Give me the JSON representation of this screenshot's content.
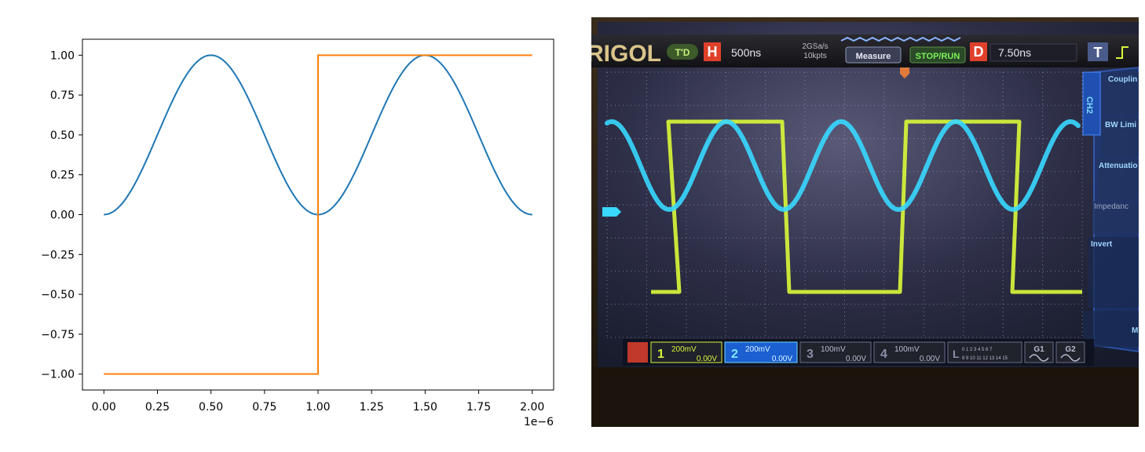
{
  "chart_data": {
    "type": "line",
    "title": "",
    "xlabel": "",
    "ylabel": "",
    "x_offset_label": "1e−6",
    "xlim": [
      -1e-07,
      2.1e-06
    ],
    "ylim": [
      -1.1,
      1.1
    ],
    "x_ticks": [
      0,
      2.5e-07,
      5e-07,
      7.5e-07,
      1e-06,
      1.25e-06,
      1.5e-06,
      1.75e-06,
      2e-06
    ],
    "x_tick_labels": [
      "0.00",
      "0.25",
      "0.50",
      "0.75",
      "1.00",
      "1.25",
      "1.50",
      "1.75",
      "2.00"
    ],
    "y_ticks": [
      1.0,
      0.75,
      0.5,
      0.25,
      0.0,
      -0.25,
      -0.5,
      -0.75,
      -1.0
    ],
    "y_tick_labels": [
      "1.00",
      "0.75",
      "0.50",
      "0.25",
      "0.00",
      "−0.25",
      "−0.50",
      "−0.75",
      "−1.00"
    ],
    "grid": false,
    "legend": "none",
    "series": [
      {
        "color": "#1f77b4",
        "x": [
          0,
          1e-07,
          2e-07,
          3e-07,
          4e-07,
          5e-07,
          6e-07,
          7e-07,
          8e-07,
          9e-07,
          1e-06,
          1.1e-06,
          1.2e-06,
          1.3e-06,
          1.4e-06,
          1.5e-06,
          1.6e-06,
          1.7e-06,
          1.8e-06,
          1.9e-06,
          2e-06
        ],
        "values": [
          0,
          0.095,
          0.345,
          0.655,
          0.905,
          1.0,
          0.905,
          0.655,
          0.345,
          0.095,
          0,
          0.095,
          0.345,
          0.655,
          0.905,
          1.0,
          0.905,
          0.655,
          0.345,
          0.095,
          0
        ]
      },
      {
        "color": "#ff7f0e",
        "x": [
          0,
          1e-06,
          1e-06,
          2e-06
        ],
        "values": [
          -1,
          -1,
          1,
          1
        ]
      }
    ]
  },
  "scope": {
    "brand": "RIGOL",
    "trigger_state": "T'D",
    "h_label": "H",
    "timebase": "500ns",
    "sample_rate": "2GSa/s",
    "memory_depth": "10kpts",
    "measure_label": "Measure",
    "stop_run_label": "STOP/RUN",
    "d_label": "D",
    "delay": "7.50ns",
    "t_label": "T",
    "channel_tab": "CH2",
    "menu_items": [
      "Couplin",
      "BW Limi",
      "Attenuatio",
      "Impedanc",
      "Invert",
      "M"
    ],
    "channels": [
      {
        "num": "1",
        "scale": "200mV",
        "offset": "0.00V"
      },
      {
        "num": "2",
        "scale": "200mV",
        "offset": "0.00V"
      },
      {
        "num": "3",
        "scale": "100mV",
        "offset": "0.00V"
      },
      {
        "num": "4",
        "scale": "100mV",
        "offset": "0.00V"
      }
    ],
    "digital_label": "L",
    "digital_bits_top": "0 1 2 3  4 5 6 7",
    "digital_bits_bottom": "8 9 10 11 12 13 14 15",
    "g1_label": "G1",
    "g2_label": "G2",
    "colors": {
      "ch1": "#d7f53a",
      "ch2": "#38d8ff",
      "accent": "#2a6fe0"
    }
  }
}
